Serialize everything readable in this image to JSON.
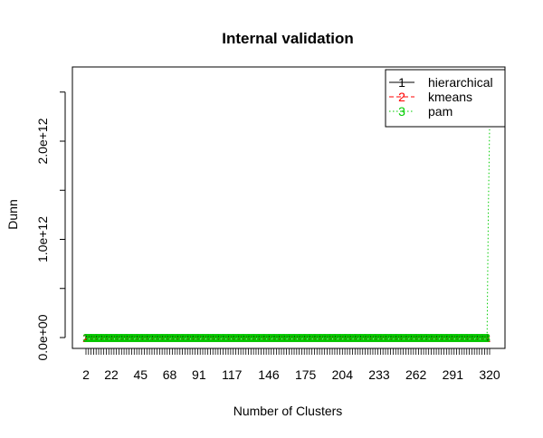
{
  "chart_data": {
    "type": "line",
    "title": "Internal validation",
    "xlabel": "Number of Clusters",
    "ylabel": "Dunn",
    "x_tick_labels": [
      "2",
      "22",
      "45",
      "68",
      "91",
      "117",
      "146",
      "175",
      "204",
      "233",
      "262",
      "291",
      "320"
    ],
    "x_tick_values": [
      2,
      22,
      45,
      68,
      91,
      117,
      146,
      175,
      204,
      233,
      262,
      291,
      320
    ],
    "x_range": [
      2,
      320
    ],
    "y_tick_labels": [
      "0.0e+00",
      "1.0e+12",
      "2.0e+12"
    ],
    "y_tick_values": [
      0,
      1000000000000,
      2000000000000
    ],
    "ylim": [
      0,
      2600000000000
    ],
    "grid": false,
    "legend_position": "top-right",
    "series": [
      {
        "name": "hierarchical",
        "marker": "1",
        "color": "#000000",
        "line_style": "solid",
        "points": [
          [
            2,
            10000000000
          ],
          [
            319,
            10000000000
          ]
        ]
      },
      {
        "name": "kmeans",
        "marker": "2",
        "color": "#ff0000",
        "line_style": "dashed",
        "points": [
          [
            2,
            0
          ],
          [
            319,
            0
          ]
        ]
      },
      {
        "name": "pam",
        "marker": "3",
        "color": "#00cd00",
        "line_style": "dotted",
        "points": [
          [
            2,
            0
          ],
          [
            318,
            0
          ],
          [
            319,
            1300000000000
          ],
          [
            320,
            2150000000000
          ]
        ]
      }
    ]
  }
}
